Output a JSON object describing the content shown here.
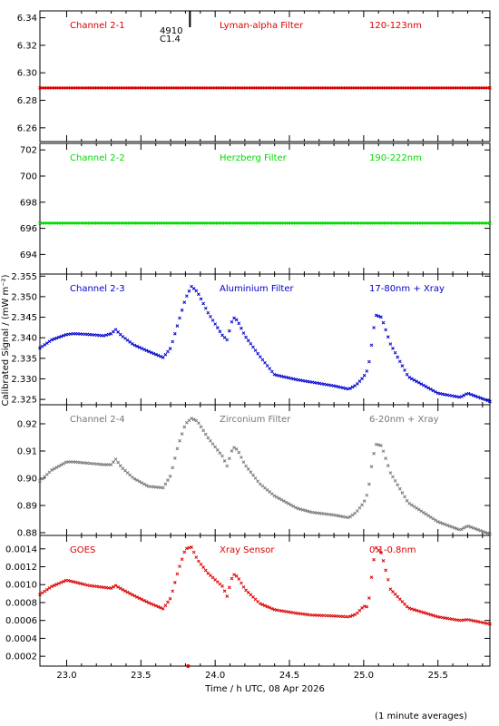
{
  "chart_data": {
    "type": "scatter",
    "ylabel": "Calibrated Signal / (mW m⁻²)",
    "xlabel": "Time / h UTC, 08 Apr 2026",
    "footnote": "(1 minute averages)",
    "xlim": [
      22.82,
      25.85
    ],
    "xticks": [
      "23.0",
      "23.5",
      "24.0",
      "24.5",
      "25.0",
      "25.5"
    ],
    "marker_note": {
      "line1": "4910",
      "line2": "C1.4",
      "x": 23.83
    },
    "panels": [
      {
        "channel": "Channel 2-1",
        "filter": "Lyman-alpha Filter",
        "band": "120-123nm",
        "color": "#dd0000",
        "ylim": [
          6.25,
          6.345
        ],
        "yticks": [
          "6.26",
          "6.28",
          "6.30",
          "6.32",
          "6.34"
        ],
        "flat": 6.289
      },
      {
        "channel": "Channel 2-2",
        "filter": "Herzberg Filter",
        "band": "190-222nm",
        "color": "#00dd00",
        "ylim": [
          692.5,
          702.5
        ],
        "yticks": [
          "694",
          "696",
          "698",
          "700",
          "702"
        ],
        "flat": 696.4
      },
      {
        "channel": "Channel 2-3",
        "filter": "Aluminium Filter",
        "band": "17-80nm + Xray",
        "color": "#0000cc",
        "ylim": [
          2.3237,
          2.3555
        ],
        "yticks": [
          "2.325",
          "2.330",
          "2.335",
          "2.340",
          "2.345",
          "2.350",
          "2.355"
        ],
        "x": [
          22.82,
          22.9,
          23.0,
          23.05,
          23.15,
          23.25,
          23.3,
          23.33,
          23.37,
          23.45,
          23.55,
          23.65,
          23.7,
          23.75,
          23.8,
          23.84,
          23.88,
          23.95,
          24.05,
          24.08,
          24.12,
          24.15,
          24.2,
          24.3,
          24.4,
          24.55,
          24.65,
          24.8,
          24.9,
          24.95,
          25.0,
          25.03,
          25.05,
          25.08,
          25.12,
          25.18,
          25.3,
          25.5,
          25.65,
          25.7,
          25.85
        ],
        "values": [
          2.3375,
          2.3395,
          2.3408,
          2.341,
          2.3408,
          2.3405,
          2.341,
          2.342,
          2.3405,
          2.3383,
          2.3367,
          2.3352,
          2.3375,
          2.3435,
          2.3495,
          2.3525,
          2.3512,
          2.3462,
          2.3405,
          2.3395,
          2.345,
          2.3442,
          2.3405,
          2.3355,
          2.331,
          2.3298,
          2.3292,
          2.3283,
          2.3275,
          2.3285,
          2.3305,
          2.3325,
          2.3375,
          2.3455,
          2.345,
          2.3385,
          2.3305,
          2.3265,
          2.3255,
          2.3265,
          2.3245
        ]
      },
      {
        "channel": "Channel 2-4",
        "filter": "Zirconium Filter",
        "band": "6-20nm + Xray",
        "color": "#777777",
        "ylim": [
          0.879,
          0.927
        ],
        "yticks": [
          "0.88",
          "0.89",
          "0.90",
          "0.91",
          "0.92"
        ],
        "x": [
          22.82,
          22.9,
          23.0,
          23.05,
          23.15,
          23.25,
          23.3,
          23.33,
          23.37,
          23.45,
          23.55,
          23.65,
          23.7,
          23.75,
          23.8,
          23.84,
          23.88,
          23.95,
          24.05,
          24.08,
          24.12,
          24.15,
          24.2,
          24.3,
          24.4,
          24.55,
          24.65,
          24.8,
          24.9,
          24.95,
          25.0,
          25.03,
          25.05,
          25.08,
          25.12,
          25.18,
          25.3,
          25.5,
          25.65,
          25.7,
          25.85
        ],
        "values": [
          0.899,
          0.903,
          0.906,
          0.906,
          0.9055,
          0.905,
          0.905,
          0.907,
          0.904,
          0.9,
          0.897,
          0.8965,
          0.901,
          0.912,
          0.92,
          0.922,
          0.921,
          0.915,
          0.908,
          0.9045,
          0.9115,
          0.9105,
          0.905,
          0.898,
          0.8935,
          0.889,
          0.8875,
          0.8865,
          0.8855,
          0.8875,
          0.891,
          0.895,
          0.9035,
          0.9125,
          0.912,
          0.902,
          0.891,
          0.884,
          0.881,
          0.8825,
          0.8795
        ]
      },
      {
        "channel": "GOES",
        "filter": "Xray Sensor",
        "band": "0.1-0.8nm",
        "color": "#dd0000",
        "ylim": [
          9e-05,
          0.00155
        ],
        "yticks": [
          "0.0002",
          "0.0004",
          "0.0006",
          "0.0008",
          "0.0010",
          "0.0012",
          "0.0014"
        ],
        "x": [
          22.82,
          22.9,
          23.0,
          23.05,
          23.15,
          23.25,
          23.3,
          23.33,
          23.37,
          23.45,
          23.55,
          23.65,
          23.7,
          23.75,
          23.8,
          23.84,
          23.88,
          23.95,
          24.05,
          24.08,
          24.12,
          24.15,
          24.2,
          24.3,
          24.4,
          24.55,
          24.65,
          24.8,
          24.9,
          24.95,
          25.0,
          25.03,
          25.05,
          25.08,
          25.12,
          25.18,
          25.3,
          25.5,
          25.65,
          25.7,
          25.85
        ],
        "values": [
          0.00089,
          0.00098,
          0.00105,
          0.00103,
          0.00099,
          0.00097,
          0.00096,
          0.00099,
          0.00095,
          0.00088,
          0.0008,
          0.00073,
          0.00085,
          0.00115,
          0.0014,
          0.00142,
          0.00128,
          0.00113,
          0.00098,
          0.00087,
          0.00112,
          0.00109,
          0.00095,
          0.00079,
          0.00072,
          0.00068,
          0.00066,
          0.00065,
          0.00064,
          0.00067,
          0.00076,
          0.00075,
          0.00105,
          0.00142,
          0.00135,
          0.00095,
          0.00074,
          0.00064,
          0.0006,
          0.00061,
          0.00056
        ]
      }
    ]
  }
}
